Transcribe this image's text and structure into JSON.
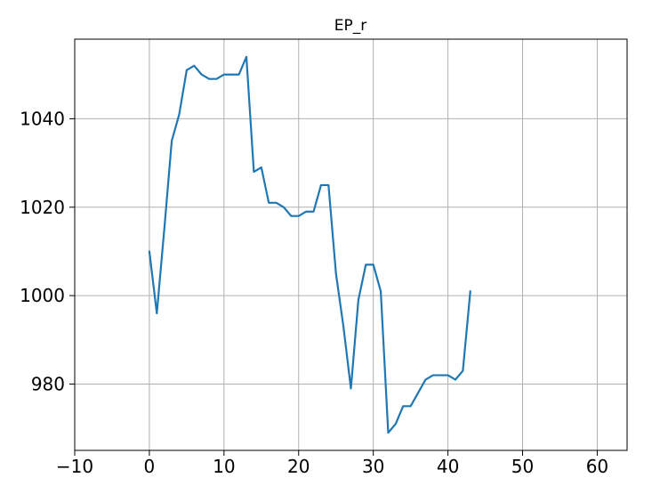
{
  "chart_data": {
    "type": "line",
    "title": "EP_r",
    "xlabel": "",
    "ylabel": "",
    "xlim": [
      -10,
      64
    ],
    "ylim": [
      965,
      1058
    ],
    "xticks": [
      -10,
      0,
      10,
      20,
      30,
      40,
      50,
      60
    ],
    "yticks": [
      980,
      1000,
      1020,
      1040
    ],
    "xtick_labels": [
      "−10",
      "0",
      "10",
      "20",
      "30",
      "40",
      "50",
      "60"
    ],
    "ytick_labels": [
      "980",
      "1000",
      "1020",
      "1040"
    ],
    "grid": true,
    "legend": "none",
    "colors": {
      "line": "#1f77b4",
      "grid": "#b0b0b0",
      "axes": "#000000"
    },
    "series": [
      {
        "x": [
          0,
          1,
          2,
          3,
          4,
          5,
          6,
          7,
          8,
          9,
          10,
          11,
          12,
          13,
          14,
          15,
          16,
          17,
          18,
          19,
          20,
          21,
          22,
          23,
          24,
          25,
          26,
          27,
          28,
          29,
          30,
          31,
          32,
          33,
          34,
          35,
          36,
          37,
          38,
          39,
          40,
          41,
          42,
          43
        ],
        "values": [
          1010,
          996,
          1015,
          1035,
          1041,
          1051,
          1052,
          1050,
          1049,
          1049,
          1050,
          1050,
          1050,
          1054,
          1028,
          1029,
          1021,
          1021,
          1020,
          1018,
          1018,
          1019,
          1019,
          1025,
          1025,
          1005,
          993,
          979,
          999,
          1007,
          1007,
          1001,
          969,
          971,
          975,
          975,
          978,
          981,
          982,
          982,
          982,
          981,
          983,
          1001
        ]
      }
    ]
  }
}
